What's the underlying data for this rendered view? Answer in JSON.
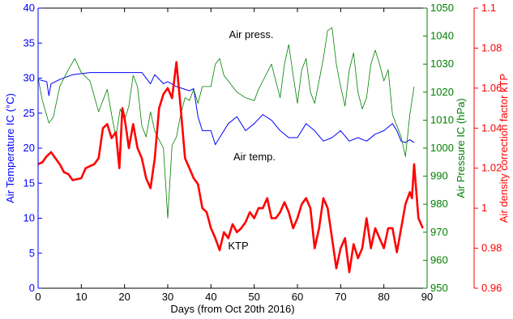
{
  "chart_data": {
    "type": "line",
    "xlabel": "Days (from Oct 20th 2016)",
    "xlim": [
      0,
      90
    ],
    "xticks": [
      0,
      10,
      20,
      30,
      40,
      50,
      60,
      70,
      80,
      90
    ],
    "grid": false,
    "legend": "none",
    "axes": {
      "left": {
        "label": "Air Temperature IC (°C)",
        "lim": [
          0,
          40
        ],
        "ticks": [
          0,
          5,
          10,
          15,
          20,
          25,
          30,
          35,
          40
        ],
        "color": "#0000ff"
      },
      "right_inner": {
        "label": "Air Pressure IC (hPa)",
        "lim": [
          950,
          1050
        ],
        "ticks": [
          950,
          960,
          970,
          980,
          990,
          1000,
          1010,
          1020,
          1030,
          1040,
          1050
        ],
        "color": "#008000"
      },
      "right_outer": {
        "label": "Air density correction factor kTP",
        "lim": [
          0.96,
          1.1
        ],
        "ticks": [
          "0.96",
          "0.98",
          "1",
          "1.02",
          "1.04",
          "1.06",
          "1.08",
          "1.1"
        ],
        "color": "#ff0000"
      }
    },
    "annotations": [
      {
        "text": "Air press.",
        "x": 50,
        "y_temp": 36.5
      },
      {
        "text": "Air temp.",
        "x": 46,
        "y_temp": 18.8
      },
      {
        "text": "KTP",
        "x": 47,
        "y_temp": 5.7
      }
    ],
    "series": [
      {
        "axis": "left",
        "color": "#0000ff",
        "x": [
          0,
          2,
          2.5,
          3,
          5,
          8,
          12,
          18,
          24,
          26,
          27,
          29,
          30,
          32,
          35,
          36,
          37,
          38,
          40,
          41,
          42,
          44,
          46,
          48,
          50,
          52,
          54,
          56,
          58,
          60,
          62,
          64,
          66,
          68,
          70,
          72,
          74,
          76,
          78,
          80,
          82,
          83,
          84,
          85,
          86,
          87
        ],
        "y": [
          29.8,
          29.5,
          27.5,
          29.2,
          29.8,
          30.5,
          30.8,
          30.8,
          30.8,
          29.2,
          30.5,
          29.2,
          29.5,
          28.8,
          28.2,
          28.5,
          24.5,
          22.5,
          22.5,
          20.5,
          21.5,
          23.5,
          24.5,
          22.5,
          23.5,
          24.8,
          24.0,
          22.5,
          21.5,
          21.5,
          23.5,
          22.5,
          21.0,
          21.5,
          22.5,
          21.0,
          21.5,
          21.0,
          22.0,
          22.5,
          23.5,
          22.5,
          21.0,
          20.8,
          21.2,
          20.8
        ]
      },
      {
        "axis": "right_inner",
        "color": "#008000",
        "x": [
          0,
          1,
          2.5,
          3.5,
          5,
          7,
          8.5,
          10,
          12,
          14,
          16,
          17,
          18,
          19,
          20,
          21,
          22,
          23,
          24,
          25,
          26,
          27,
          28,
          29,
          30,
          31,
          32,
          33,
          34,
          35,
          36,
          37,
          38,
          40,
          41,
          42,
          43,
          44,
          45,
          46,
          48,
          50,
          51,
          52,
          53,
          54,
          55,
          56,
          57,
          58,
          59,
          60,
          61,
          62,
          63,
          64,
          65,
          66,
          67,
          68,
          69,
          70,
          71,
          72,
          73,
          74,
          75,
          76,
          77,
          78,
          79,
          80,
          81,
          82,
          83,
          84,
          85,
          86,
          87
        ],
        "y": [
          1025,
          1017,
          1009,
          1011,
          1022,
          1028,
          1032,
          1027,
          1024,
          1013,
          1021,
          1012,
          1004,
          1014,
          1010,
          1015,
          1026,
          1022,
          1008,
          1004,
          1013,
          1006,
          1003,
          1000,
          975,
          1001,
          1004,
          1012,
          1018,
          1017,
          1021,
          1016,
          1022,
          1022,
          1030,
          1032,
          1026,
          1024,
          1022,
          1020,
          1018,
          1017,
          1021,
          1024,
          1027,
          1030,
          1024,
          1018,
          1030,
          1037,
          1026,
          1016,
          1028,
          1032,
          1020,
          1016,
          1024,
          1032,
          1042,
          1043,
          1030,
          1022,
          1015,
          1028,
          1034,
          1020,
          1014,
          1018,
          1030,
          1035,
          1030,
          1024,
          1028,
          1012,
          1008,
          1004,
          997,
          1012,
          1022
        ]
      },
      {
        "axis": "right_outer",
        "color": "#ff0000",
        "x": [
          0,
          1,
          2,
          3,
          4,
          5,
          6,
          7,
          8,
          10,
          11,
          13,
          14,
          15,
          16,
          17,
          18,
          18.8,
          19.5,
          20,
          20.5,
          21,
          22,
          23,
          24,
          25,
          26,
          27,
          28,
          29,
          30,
          31,
          32,
          33,
          34,
          35,
          36,
          37,
          38,
          39,
          40,
          41,
          42,
          43,
          44,
          45,
          46,
          47,
          48,
          49,
          50,
          51,
          52,
          53,
          54,
          55,
          56,
          57,
          58,
          59,
          60,
          61,
          62,
          63,
          64,
          65,
          66,
          67,
          68,
          69,
          70,
          71,
          72,
          73,
          74,
          75,
          76,
          77,
          78,
          79,
          80,
          81,
          82,
          83,
          84,
          85,
          86,
          86.5,
          87,
          88,
          89
        ],
        "y": [
          1.022,
          1.023,
          1.026,
          1.028,
          1.025,
          1.022,
          1.018,
          1.017,
          1.014,
          1.015,
          1.02,
          1.022,
          1.025,
          1.04,
          1.042,
          1.035,
          1.038,
          1.02,
          1.05,
          1.045,
          1.038,
          1.03,
          1.042,
          1.03,
          1.025,
          1.015,
          1.01,
          1.025,
          1.05,
          1.057,
          1.06,
          1.055,
          1.073,
          1.05,
          1.025,
          1.02,
          1.015,
          1.012,
          1.0,
          0.998,
          0.99,
          0.985,
          0.979,
          0.988,
          0.985,
          0.992,
          0.988,
          0.99,
          0.993,
          0.998,
          0.995,
          1.0,
          1.0,
          1.005,
          0.995,
          0.995,
          0.998,
          1.003,
          0.998,
          0.99,
          0.995,
          1.002,
          1.005,
          1.0,
          0.98,
          0.99,
          1.005,
          1.0,
          0.985,
          0.97,
          0.98,
          0.985,
          0.968,
          0.982,
          0.975,
          0.98,
          0.995,
          0.98,
          0.99,
          0.985,
          0.98,
          0.99,
          0.99,
          0.978,
          0.99,
          1.002,
          1.008,
          1.005,
          1.022,
          0.995,
          0.99
        ]
      }
    ]
  }
}
